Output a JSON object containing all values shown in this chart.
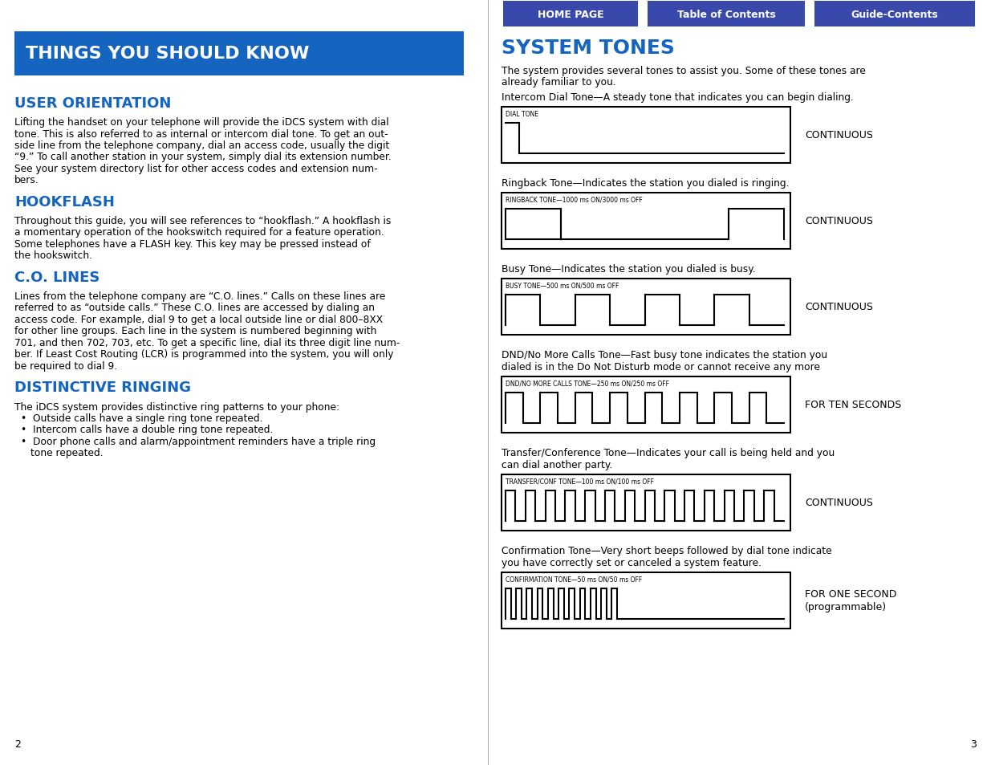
{
  "bg": "#ffffff",
  "left_title_bg": "#1565C0",
  "left_title_text": "THINGS YOU SHOULD KNOW",
  "left_title_color": "#ffffff",
  "heading_color": "#1565C0",
  "btn_color": "#3949AB",
  "btn_text_color": "#ffffff",
  "divider_color": "#aaaaaa",
  "black": "#000000",
  "sections": [
    {
      "heading": "USER ORIENTATION",
      "body": "Lifting the handset on your telephone will provide the iDCS system with dial\ntone. This is also referred to as internal or intercom dial tone. To get an out-\nside line from the telephone company, dial an access code, usually the digit\n“9.” To call another station in your system, simply dial its extension number.\nSee your system directory list for other access codes and extension num-\nbers."
    },
    {
      "heading": "HOOKFLASH",
      "body": "Throughout this guide, you will see references to “hookflash.” A hookflash is\na momentary operation of the hookswitch required for a feature operation.\nSome telephones have a FLASH key. This key may be pressed instead of\nthe hookswitch."
    },
    {
      "heading": "C.O. LINES",
      "body": "Lines from the telephone company are “C.O. lines.” Calls on these lines are\nreferred to as “outside calls.” These C.O. lines are accessed by dialing an\naccess code. For example, dial 9 to get a local outside line or dial 800–8XX\nfor other line groups. Each line in the system is numbered beginning with\n701, and then 702, 703, etc. To get a specific line, dial its three digit line num-\nber. If Least Cost Routing (LCR) is programmed into the system, you will only\nbe required to dial 9."
    },
    {
      "heading": "DISTINCTIVE RINGING",
      "intro": "The iDCS system provides distinctive ring patterns to your phone:",
      "bullets": [
        "Outside calls have a single ring tone repeated.",
        "Intercom calls have a double ring tone repeated.",
        "Door phone calls and alarm/appointment reminders have a triple ring\n    tone repeated."
      ]
    }
  ],
  "right_title": "SYSTEM TONES",
  "right_intro_line1": "The system provides several tones to assist you. Some of these tones are",
  "right_intro_line2": "already familiar to you.",
  "tones": [
    {
      "desc": "Intercom Dial Tone—A steady tone that indicates you can begin dialing.",
      "label": "DIAL TONE",
      "note": "CONTINUOUS",
      "type": "dial"
    },
    {
      "desc": "Ringback Tone—Indicates the station you dialed is ringing.",
      "label": "RINGBACK TONE—1000 ms ON/3000 ms OFF",
      "note": "CONTINUOUS",
      "type": "ringback"
    },
    {
      "desc": "Busy Tone—Indicates the station you dialed is busy.",
      "label": "BUSY TONE—500 ms ON/500 ms OFF",
      "note": "CONTINUOUS",
      "type": "busy"
    },
    {
      "desc": "DND/No More Calls Tone—Fast busy tone indicates the station you\ndialed is in the Do Not Disturb mode or cannot receive any more",
      "label": "DND/NO MORE CALLS TONE—250 ms ON/250 ms OFF",
      "note": "FOR TEN SECONDS",
      "type": "dnd"
    },
    {
      "desc": "Transfer/Conference Tone—Indicates your call is being held and you\ncan dial another party.",
      "label": "TRANSFER/CONF TONE—100 ms ON/100 ms OFF",
      "note": "CONTINUOUS",
      "type": "transfer"
    },
    {
      "desc": "Confirmation Tone—Very short beeps followed by dial tone indicate\nyou have correctly set or canceled a system feature.",
      "label": "CONFIRMATION TONE—50 ms ON/50 ms OFF",
      "note": "FOR ONE SECOND\n(programmable)",
      "type": "confirmation"
    }
  ],
  "buttons": [
    {
      "label": "HOME PAGE"
    },
    {
      "label": "Table of Contents"
    },
    {
      "label": "Guide-Contents"
    }
  ],
  "page_left": "2",
  "page_right": "3"
}
